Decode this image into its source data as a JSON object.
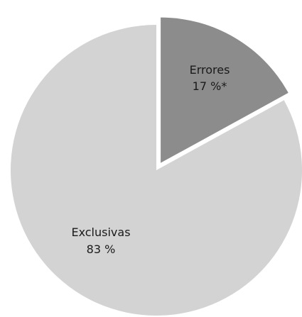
{
  "chart_data": {
    "type": "pie",
    "slices": [
      {
        "label": "Errores",
        "value_label": "17 %*",
        "value": 17,
        "color": "#8c8c8c",
        "exploded": true
      },
      {
        "label": "Exclusivas",
        "value_label": "83 %",
        "value": 83,
        "color": "#d3d3d3",
        "exploded": false
      }
    ]
  }
}
